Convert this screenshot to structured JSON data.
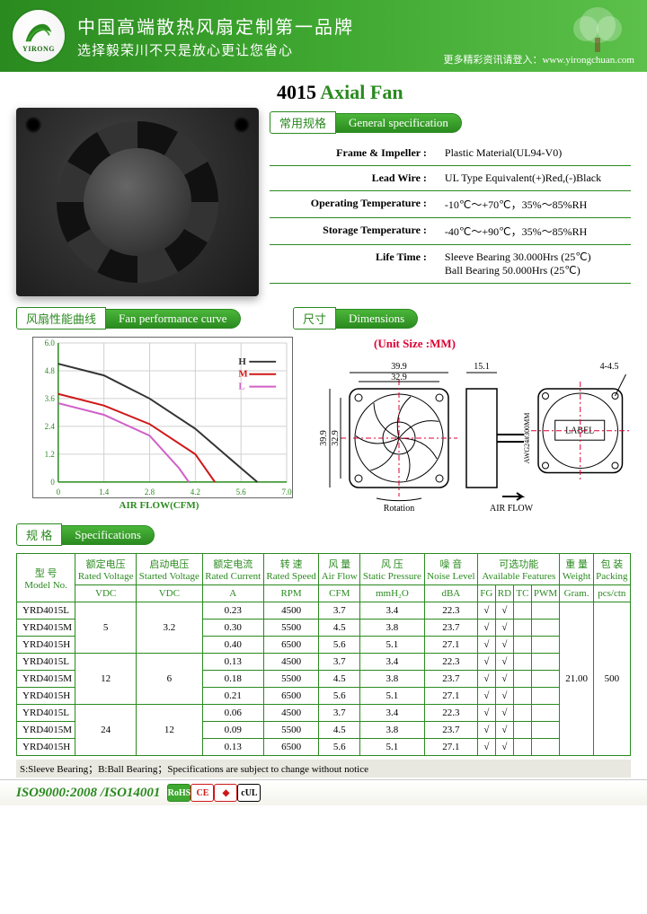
{
  "header": {
    "brand": "YIRONG",
    "line1": "中国高端散热风扇定制第一品牌",
    "line2": "选择毅荣川不只是放心更让您省心",
    "rightNote": "更多精彩资讯请登入：www.yirongchuan.com"
  },
  "title": {
    "number": "4015",
    "text": "Axial Fan"
  },
  "sections": {
    "genSpecCN": "常用规格",
    "genSpecEN": "General specification",
    "curveCN": "风扇性能曲线",
    "curveEN": "Fan performance curve",
    "dimCN": "尺寸",
    "dimEN": "Dimensions",
    "specCN": "规  格",
    "specEN": "Specifications"
  },
  "genSpec": {
    "rows": [
      {
        "label": "Frame & Impeller :",
        "value": "Plastic Material(UL94-V0)"
      },
      {
        "label": "Lead Wire :",
        "value": "UL Type Equivalent(+)Red,(-)Black"
      },
      {
        "label": "Operating Temperature :",
        "value": "-10℃～+70℃，35%～85%RH"
      },
      {
        "label": "Storage Temperature :",
        "value": "-40℃～+90℃，35%～85%RH"
      },
      {
        "label": "Life Time :",
        "value": "Sleeve Bearing 30.000Hrs (25℃)\nBall Bearing 50.000Hrs (25℃)"
      }
    ]
  },
  "chart": {
    "ylabel": "AIR PRESSURE(mmH2O)",
    "xlabel": "AIR FLOW(CFM)",
    "xlim": [
      0,
      7.0
    ],
    "ylim": [
      0,
      6.0
    ],
    "xticks": [
      "0",
      "1.4",
      "2.8",
      "4.2",
      "5.6",
      "7.0"
    ],
    "yticks": [
      "0",
      "1.2",
      "2.4",
      "3.6",
      "4.8",
      "6.0"
    ],
    "grid_color": "#d0d0d0",
    "axis_color": "#2a8a1f",
    "series": [
      {
        "label": "H",
        "color": "#333333",
        "points": [
          [
            0,
            5.1
          ],
          [
            1.4,
            4.6
          ],
          [
            2.8,
            3.6
          ],
          [
            4.2,
            2.3
          ],
          [
            5.6,
            0.6
          ],
          [
            6.1,
            0
          ]
        ]
      },
      {
        "label": "M",
        "color": "#d01818",
        "points": [
          [
            0,
            3.8
          ],
          [
            1.4,
            3.3
          ],
          [
            2.8,
            2.5
          ],
          [
            4.2,
            1.2
          ],
          [
            4.8,
            0
          ]
        ]
      },
      {
        "label": "L",
        "color": "#d060c8",
        "points": [
          [
            0,
            3.4
          ],
          [
            1.4,
            2.9
          ],
          [
            2.8,
            2.0
          ],
          [
            3.7,
            0.6
          ],
          [
            4.0,
            0
          ]
        ]
      }
    ],
    "legend": [
      "H —",
      "M —",
      "L —"
    ],
    "line_width": 2
  },
  "dims": {
    "unitNote": "(Unit Size :MM)",
    "labels": {
      "w_outer": "39.9",
      "w_inner": "32.9",
      "h_outer": "39.9",
      "h_inner": "32.9",
      "depth": "15.1",
      "hole": "4-4.5",
      "label": "LABEL",
      "airflow": "AIR FLOW",
      "rotation": "Rotation",
      "wire": "AWG24#300MM"
    }
  },
  "specTable": {
    "headers1": [
      {
        "cn": "型  号",
        "en": "Model No.",
        "rs": 2
      },
      {
        "cn": "额定电压",
        "en": "Rated Voltage"
      },
      {
        "cn": "启动电压",
        "en": "Started Voltage"
      },
      {
        "cn": "额定电流",
        "en": "Rated Current"
      },
      {
        "cn": "转 速",
        "en": "Rated Speed"
      },
      {
        "cn": "风 量",
        "en": "Air Flow"
      },
      {
        "cn": "风 压",
        "en": "Static Pressure"
      },
      {
        "cn": "噪 音",
        "en": "Noise Level"
      },
      {
        "cn": "可选功能",
        "en": "Available Features",
        "cs": 4
      },
      {
        "cn": "重 量",
        "en": "Weight"
      },
      {
        "cn": "包 装",
        "en": "Packing"
      }
    ],
    "headers2": [
      "VDC",
      "VDC",
      "A",
      "RPM",
      "CFM",
      "mmH₂O",
      "dBA",
      "FG",
      "RD",
      "TC",
      "PWM",
      "Gram.",
      "pcs/ctn"
    ],
    "rows": [
      [
        "YRD4015L",
        "5",
        "3.2",
        "0.23",
        "4500",
        "3.7",
        "3.4",
        "22.3",
        "√",
        "√",
        "",
        "",
        "21.00",
        "500"
      ],
      [
        "YRD4015M",
        "",
        "",
        "0.30",
        "5500",
        "4.5",
        "3.8",
        "23.7",
        "√",
        "√",
        "",
        "",
        "",
        ""
      ],
      [
        "YRD4015H",
        "",
        "",
        "0.40",
        "6500",
        "5.6",
        "5.1",
        "27.1",
        "√",
        "√",
        "",
        "",
        "",
        ""
      ],
      [
        "YRD4015L",
        "12",
        "6",
        "0.13",
        "4500",
        "3.7",
        "3.4",
        "22.3",
        "√",
        "√",
        "",
        "",
        "",
        ""
      ],
      [
        "YRD4015M",
        "",
        "",
        "0.18",
        "5500",
        "4.5",
        "3.8",
        "23.7",
        "√",
        "√",
        "",
        "",
        "",
        ""
      ],
      [
        "YRD4015H",
        "",
        "",
        "0.21",
        "6500",
        "5.6",
        "5.1",
        "27.1",
        "√",
        "√",
        "",
        "",
        "",
        ""
      ],
      [
        "YRD4015L",
        "24",
        "12",
        "0.06",
        "4500",
        "3.7",
        "3.4",
        "22.3",
        "√",
        "√",
        "",
        "",
        "",
        ""
      ],
      [
        "YRD4015M",
        "",
        "",
        "0.09",
        "5500",
        "4.5",
        "3.8",
        "23.7",
        "√",
        "√",
        "",
        "",
        "",
        ""
      ],
      [
        "YRD4015H",
        "",
        "",
        "0.13",
        "6500",
        "5.6",
        "5.1",
        "27.1",
        "√",
        "√",
        "",
        "",
        "",
        ""
      ]
    ],
    "groupSpan": 3,
    "weightSpan": 9,
    "packingSpan": 9,
    "voltGroups": [
      {
        "start": 0,
        "v": "5",
        "sv": "3.2"
      },
      {
        "start": 3,
        "v": "12",
        "sv": "6"
      },
      {
        "start": 6,
        "v": "24",
        "sv": "12"
      }
    ]
  },
  "footnote": "S:Sleeve Bearing；B:Ball Bearing；Specifications are subject to change without notice",
  "footer": {
    "iso": "ISO9000:2008 /ISO14001",
    "certs": [
      {
        "text": "RoHS",
        "bg": "#3fa831",
        "fg": "#fff"
      },
      {
        "text": "CE",
        "bg": "#fff",
        "fg": "#d01818"
      },
      {
        "text": "◆",
        "bg": "#fff",
        "fg": "#d01818"
      },
      {
        "text": "cUL",
        "bg": "#fff",
        "fg": "#000"
      }
    ]
  }
}
